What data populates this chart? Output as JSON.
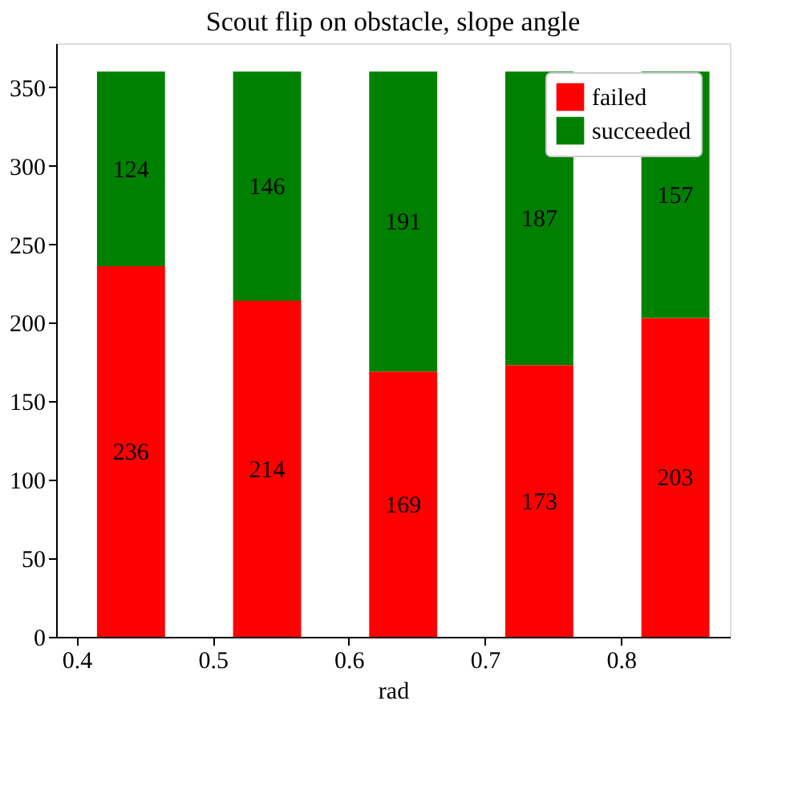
{
  "chart_data": {
    "type": "bar",
    "title": "Scout flip on obstacle, slope angle",
    "xlabel": "rad",
    "x": [
      0.44,
      0.54,
      0.64,
      0.74,
      0.84
    ],
    "series": [
      {
        "name": "failed",
        "color": "#ff0000",
        "values": [
          236,
          214,
          169,
          173,
          203
        ]
      },
      {
        "name": "succeeded",
        "color": "#008000",
        "values": [
          124,
          146,
          191,
          187,
          157
        ]
      }
    ],
    "stacked": true,
    "data_labels": true,
    "legend": "top right",
    "grid": false,
    "xlim": [
      0.385,
      0.88
    ],
    "xticks": [
      0.4,
      0.5,
      0.6,
      0.7,
      0.8
    ],
    "ylim": [
      0,
      378
    ],
    "yticks": [
      0,
      50,
      100,
      150,
      200,
      250,
      300,
      350
    ]
  }
}
